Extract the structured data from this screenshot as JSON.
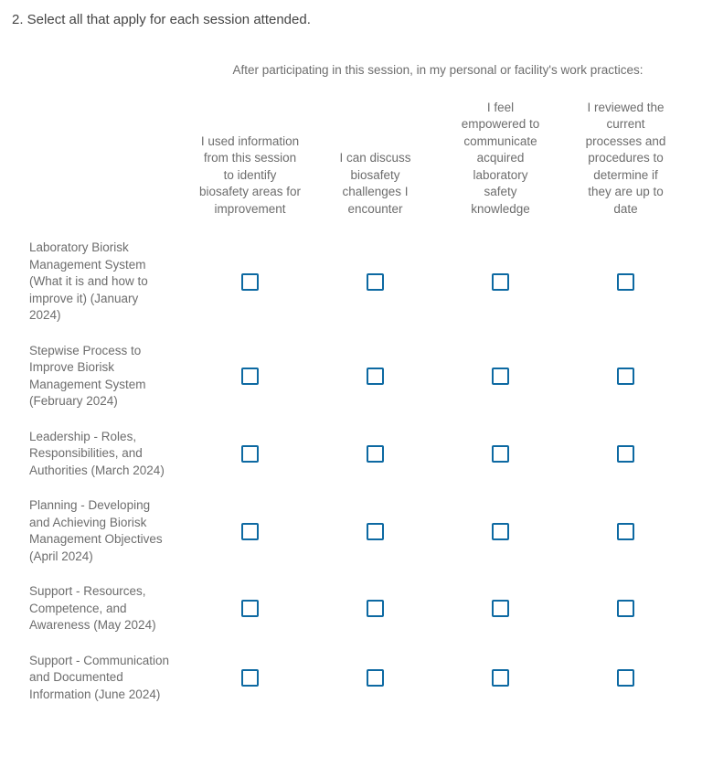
{
  "question": {
    "title": "2. Select all that apply for each session attended."
  },
  "matrix": {
    "group_header": "After participating in this session, in my personal or facility's work practices:",
    "columns": [
      "I used information from this session to identify biosafety areas for improvement",
      "I can discuss biosafety challenges I encounter",
      "I feel empowered to communicate acquired laboratory safety knowledge",
      "I reviewed the current processes and procedures to determine if they are up to date"
    ],
    "rows": [
      {
        "label": "Laboratory Biorisk Management System (What it is and how to improve it) (January 2024)",
        "values": [
          false,
          false,
          false,
          false
        ]
      },
      {
        "label": "Stepwise Process to Improve Biorisk Management System (February 2024)",
        "values": [
          false,
          false,
          false,
          false
        ]
      },
      {
        "label": "Leadership - Roles, Responsibilities, and Authorities (March 2024)",
        "values": [
          false,
          false,
          false,
          false
        ]
      },
      {
        "label": "Planning - Developing and Achieving Biorisk Management Objectives (April 2024)",
        "values": [
          false,
          false,
          false,
          false
        ]
      },
      {
        "label": "Support - Resources, Competence, and Awareness (May 2024)",
        "values": [
          false,
          false,
          false,
          false
        ]
      },
      {
        "label": "Support - Communication and Documented Information (June 2024)",
        "values": [
          false,
          false,
          false,
          false
        ]
      }
    ]
  },
  "colors": {
    "checkbox_border": "#0d69a2",
    "title_text": "#454545",
    "body_text": "#6d6d6d",
    "background": "#ffffff"
  }
}
